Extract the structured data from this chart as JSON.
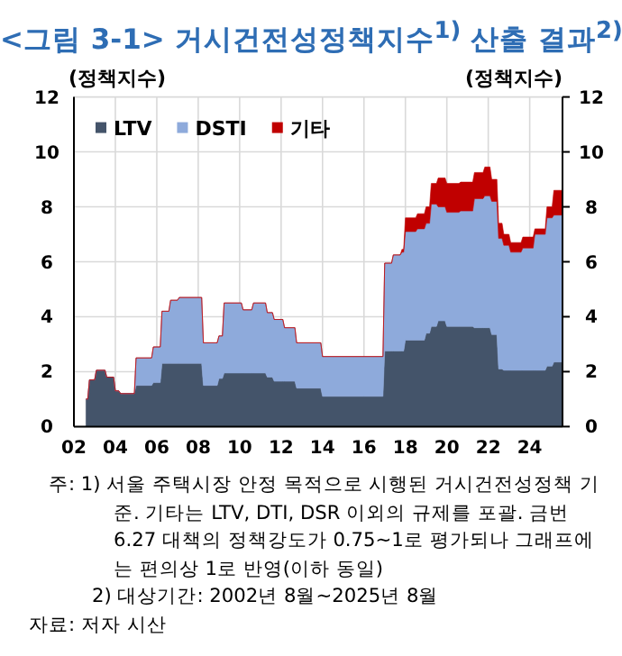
{
  "chart_data": {
    "type": "area",
    "stacked": true,
    "title": "<그림 3-1> 거시건전성정책지수$^{1)}$ 산출 결과$^{2)}$",
    "ylabel": "(정책지수)",
    "y2label": "(정책지수)",
    "x": [
      "2002-08",
      "2002-09",
      "2002-10",
      "2003-01",
      "2003-02",
      "2003-07",
      "2003-08",
      "2003-12",
      "2004-01",
      "2004-03",
      "2004-04",
      "2004-12",
      "2005-01",
      "2005-10",
      "2005-11",
      "2006-03",
      "2006-04",
      "2006-08",
      "2006-09",
      "2007-01",
      "2007-02",
      "2008-03",
      "2008-04",
      "2008-12",
      "2009-01",
      "2009-03",
      "2009-04",
      "2010-02",
      "2010-03",
      "2010-08",
      "2010-09",
      "2011-04",
      "2011-05",
      "2011-08",
      "2011-09",
      "2012-02",
      "2012-03",
      "2012-09",
      "2012-10",
      "2013-12",
      "2014-01",
      "2016-12",
      "2017-01",
      "2017-05",
      "2017-06",
      "2017-10",
      "2017-11",
      "2017-12",
      "2018-01",
      "2018-07",
      "2018-08",
      "2018-12",
      "2019-01",
      "2019-03",
      "2019-04",
      "2019-07",
      "2019-08",
      "2019-12",
      "2020-01",
      "2020-08",
      "2020-09",
      "2021-04",
      "2021-05",
      "2021-10",
      "2021-11",
      "2022-02",
      "2022-03",
      "2022-06",
      "2022-07",
      "2022-09",
      "2022-10",
      "2023-01",
      "2023-02",
      "2023-08",
      "2023-09",
      "2024-03",
      "2024-04",
      "2024-10",
      "2024-11",
      "2025-02",
      "2025-03",
      "2025-07",
      "2025-08"
    ],
    "series": [
      {
        "name": "LTV",
        "color": "#44546a",
        "values": [
          1.0,
          1.0,
          1.7,
          1.7,
          2.05,
          2.05,
          1.8,
          1.8,
          1.3,
          1.3,
          1.2,
          1.2,
          1.5,
          1.5,
          1.6,
          1.6,
          2.3,
          2.3,
          2.3,
          2.3,
          2.3,
          2.3,
          1.5,
          1.5,
          1.75,
          1.75,
          1.95,
          1.95,
          1.95,
          1.95,
          1.95,
          1.95,
          1.8,
          1.8,
          1.65,
          1.65,
          1.65,
          1.65,
          1.4,
          1.4,
          1.1,
          1.1,
          2.75,
          2.75,
          2.75,
          2.75,
          2.75,
          2.75,
          3.15,
          3.15,
          3.15,
          3.15,
          3.4,
          3.4,
          3.65,
          3.65,
          3.85,
          3.85,
          3.65,
          3.65,
          3.65,
          3.65,
          3.6,
          3.6,
          3.6,
          3.6,
          3.35,
          3.35,
          2.1,
          2.1,
          2.05,
          2.05,
          2.05,
          2.05,
          2.05,
          2.05,
          2.05,
          2.05,
          2.2,
          2.2,
          2.35,
          2.35,
          2.35
        ]
      },
      {
        "name": "DSTI",
        "color": "#8eaadb",
        "values": [
          0,
          0,
          0,
          0,
          0,
          0,
          0,
          0,
          0,
          0,
          0,
          0,
          1.0,
          1.0,
          1.3,
          1.3,
          1.9,
          1.9,
          2.3,
          2.3,
          2.4,
          2.4,
          1.55,
          1.55,
          1.55,
          1.55,
          2.55,
          2.55,
          2.3,
          2.3,
          2.55,
          2.55,
          2.35,
          2.35,
          2.25,
          2.25,
          1.95,
          1.95,
          1.65,
          1.65,
          1.45,
          1.45,
          3.2,
          3.2,
          3.5,
          3.5,
          3.6,
          3.6,
          3.95,
          3.95,
          4.05,
          4.05,
          4.0,
          4.0,
          4.45,
          4.45,
          4.15,
          4.15,
          4.15,
          4.15,
          4.2,
          4.2,
          4.7,
          4.7,
          4.8,
          4.8,
          4.85,
          4.85,
          4.75,
          4.75,
          4.55,
          4.55,
          4.3,
          4.3,
          4.45,
          4.45,
          4.95,
          4.95,
          5.4,
          5.4,
          5.35,
          5.35,
          5.35
        ]
      },
      {
        "name": "기타",
        "color": "#c00000",
        "values": [
          0,
          0,
          0,
          0,
          0,
          0,
          0,
          0,
          0,
          0,
          0,
          0,
          0,
          0,
          0,
          0,
          0,
          0,
          0,
          0,
          0,
          0,
          0,
          0,
          0,
          0,
          0,
          0,
          0,
          0,
          0,
          0,
          0,
          0,
          0,
          0,
          0,
          0,
          0,
          0,
          0,
          0,
          0,
          0,
          0,
          0,
          0.1,
          0.1,
          0.5,
          0.5,
          0.55,
          0.55,
          0.6,
          0.6,
          0.75,
          0.75,
          1.05,
          1.05,
          1.05,
          1.05,
          1.05,
          1.05,
          0.95,
          0.95,
          1.05,
          1.05,
          0.8,
          0.8,
          0.55,
          0.55,
          0.4,
          0.4,
          0.35,
          0.35,
          0.4,
          0.4,
          0.2,
          0.2,
          0.4,
          0.4,
          0.9,
          0.9,
          0.9
        ]
      }
    ],
    "xlim": [
      "2002-01",
      "2025-08"
    ],
    "xticks": [
      {
        "value": "2002-01",
        "label": "02"
      },
      {
        "value": "2004-01",
        "label": "04"
      },
      {
        "value": "2006-01",
        "label": "06"
      },
      {
        "value": "2008-01",
        "label": "08"
      },
      {
        "value": "2010-01",
        "label": "10"
      },
      {
        "value": "2012-01",
        "label": "12"
      },
      {
        "value": "2014-01",
        "label": "14"
      },
      {
        "value": "2016-01",
        "label": "16"
      },
      {
        "value": "2018-01",
        "label": "18"
      },
      {
        "value": "2020-01",
        "label": "20"
      },
      {
        "value": "2022-01",
        "label": "22"
      },
      {
        "value": "2024-01",
        "label": "24"
      }
    ],
    "ylim": [
      0,
      12
    ],
    "yticks": [
      0,
      2,
      4,
      6,
      8,
      10,
      12
    ],
    "y2lim": [
      0,
      12
    ],
    "y2ticks": [
      0,
      2,
      4,
      6,
      8,
      10,
      12
    ],
    "grid": true,
    "legend": "top left",
    "annotations": [
      "주: 1) 서울 주택시장 안정 목적으로 시행된 거시건전성정책 기준. 기타는 LTV, DTI, DSR 이외의 규제를 포괄. 금번 6.27 대책의 정책강도가 0.75~1로 평가되나 그래프에는 편의상 1로 반영(이하 동일)",
      "2) 대상기간: 2002년 8월~2025년 8월",
      "자료: 저자 시산"
    ]
  }
}
